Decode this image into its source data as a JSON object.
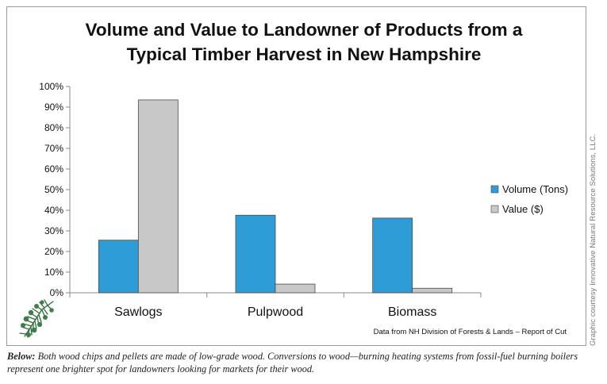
{
  "chart_data": {
    "type": "bar",
    "title_lines": [
      "Volume and Value to Landowner of Products from a",
      "Typical Timber Harvest in New Hampshire"
    ],
    "categories": [
      "Sawlogs",
      "Pulpwood",
      "Biomass"
    ],
    "series": [
      {
        "name": "Volume (Tons)",
        "color": "#2e9cd6",
        "values": [
          25.5,
          37.6,
          36.2
        ]
      },
      {
        "name": "Value ($)",
        "color": "#c8c8c8",
        "values": [
          93.5,
          4.2,
          2.2
        ]
      }
    ],
    "ylim": [
      0,
      100
    ],
    "yticks": [
      0,
      10,
      20,
      30,
      40,
      50,
      60,
      70,
      80,
      90,
      100
    ],
    "ytick_labels": [
      "0%",
      "10%",
      "20%",
      "30%",
      "40%",
      "50%",
      "60%",
      "70%",
      "80%",
      "90%",
      "100%"
    ],
    "grid": false,
    "legend_position": "right",
    "source_note": "Data from NH Division of Forests & Lands – Report of Cut"
  },
  "logo": {
    "icon": "pine-branch-icon",
    "color": "#2e6b3a"
  },
  "credit_text": "Graphic courtesy Innovative Natural Resource Solutions, LLC.",
  "caption": {
    "lead": "Below:",
    "text": " Both wood chips and pellets are made of low-grade wood. Conversions to wood—burning heating systems from fossil-fuel burning boilers represent one brighter spot for landowners looking for markets for their wood."
  }
}
